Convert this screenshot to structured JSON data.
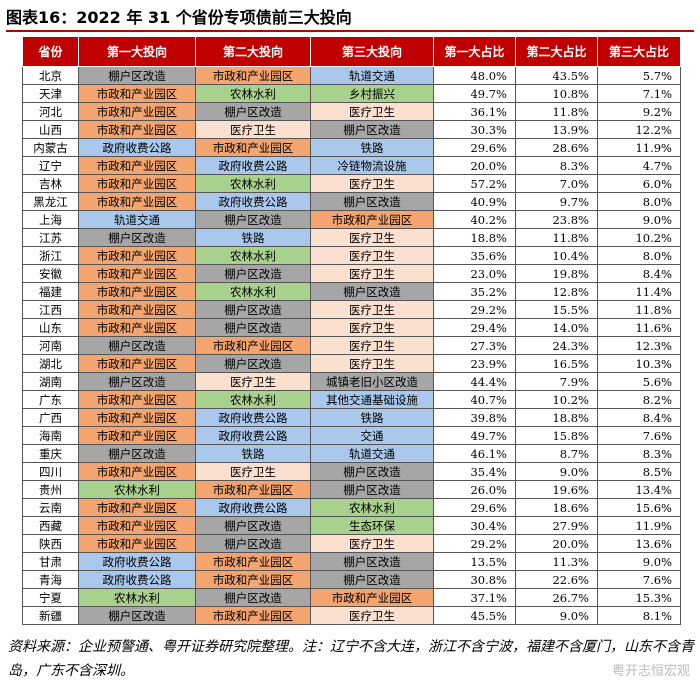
{
  "header": {
    "title": "图表16：2022 年 31 个省份专项债前三大投向"
  },
  "table": {
    "columns": [
      "省份",
      "第一大投向",
      "第二大投向",
      "第三大投向",
      "第一大占比",
      "第二大占比",
      "第三大占比"
    ],
    "rows": [
      [
        "北京",
        "棚户区改造",
        "市政和产业园区",
        "轨道交通",
        "48.0%",
        "43.5%",
        "5.7%"
      ],
      [
        "天津",
        "市政和产业园区",
        "农林水利",
        "乡村振兴",
        "49.7%",
        "10.8%",
        "7.1%"
      ],
      [
        "河北",
        "市政和产业园区",
        "棚户区改造",
        "医疗卫生",
        "36.1%",
        "11.8%",
        "9.2%"
      ],
      [
        "山西",
        "市政和产业园区",
        "医疗卫生",
        "棚户区改造",
        "30.3%",
        "13.9%",
        "12.2%"
      ],
      [
        "内蒙古",
        "政府收费公路",
        "市政和产业园区",
        "铁路",
        "29.6%",
        "28.6%",
        "11.9%"
      ],
      [
        "辽宁",
        "市政和产业园区",
        "政府收费公路",
        "冷链物流设施",
        "20.0%",
        "8.3%",
        "4.7%"
      ],
      [
        "吉林",
        "市政和产业园区",
        "农林水利",
        "医疗卫生",
        "57.2%",
        "7.0%",
        "6.0%"
      ],
      [
        "黑龙江",
        "市政和产业园区",
        "政府收费公路",
        "棚户区改造",
        "40.9%",
        "9.7%",
        "8.0%"
      ],
      [
        "上海",
        "轨道交通",
        "棚户区改造",
        "市政和产业园区",
        "40.2%",
        "23.8%",
        "9.0%"
      ],
      [
        "江苏",
        "棚户区改造",
        "铁路",
        "医疗卫生",
        "18.8%",
        "11.8%",
        "10.2%"
      ],
      [
        "浙江",
        "市政和产业园区",
        "农林水利",
        "医疗卫生",
        "35.6%",
        "10.4%",
        "8.0%"
      ],
      [
        "安徽",
        "市政和产业园区",
        "棚户区改造",
        "医疗卫生",
        "23.0%",
        "19.8%",
        "8.4%"
      ],
      [
        "福建",
        "市政和产业园区",
        "农林水利",
        "棚户区改造",
        "35.2%",
        "12.8%",
        "11.4%"
      ],
      [
        "江西",
        "市政和产业园区",
        "棚户区改造",
        "医疗卫生",
        "29.2%",
        "15.5%",
        "11.8%"
      ],
      [
        "山东",
        "市政和产业园区",
        "棚户区改造",
        "医疗卫生",
        "29.4%",
        "14.0%",
        "11.6%"
      ],
      [
        "河南",
        "棚户区改造",
        "市政和产业园区",
        "医疗卫生",
        "27.3%",
        "24.3%",
        "12.3%"
      ],
      [
        "湖北",
        "市政和产业园区",
        "棚户区改造",
        "医疗卫生",
        "23.9%",
        "16.5%",
        "10.3%"
      ],
      [
        "湖南",
        "棚户区改造",
        "医疗卫生",
        "城镇老旧小区改造",
        "44.4%",
        "7.9%",
        "5.6%"
      ],
      [
        "广东",
        "市政和产业园区",
        "农林水利",
        "其他交通基础设施",
        "40.7%",
        "10.2%",
        "8.2%"
      ],
      [
        "广西",
        "市政和产业园区",
        "政府收费公路",
        "铁路",
        "39.8%",
        "18.8%",
        "8.4%"
      ],
      [
        "海南",
        "市政和产业园区",
        "政府收费公路",
        "交通",
        "49.7%",
        "15.8%",
        "7.6%"
      ],
      [
        "重庆",
        "棚户区改造",
        "铁路",
        "轨道交通",
        "46.1%",
        "8.7%",
        "8.3%"
      ],
      [
        "四川",
        "市政和产业园区",
        "医疗卫生",
        "棚户区改造",
        "35.4%",
        "9.0%",
        "8.5%"
      ],
      [
        "贵州",
        "农林水利",
        "市政和产业园区",
        "棚户区改造",
        "26.0%",
        "19.6%",
        "13.4%"
      ],
      [
        "云南",
        "市政和产业园区",
        "政府收费公路",
        "农林水利",
        "29.6%",
        "18.6%",
        "15.6%"
      ],
      [
        "西藏",
        "市政和产业园区",
        "棚户区改造",
        "生态环保",
        "30.4%",
        "27.9%",
        "11.9%"
      ],
      [
        "陕西",
        "市政和产业园区",
        "棚户区改造",
        "医疗卫生",
        "29.2%",
        "20.0%",
        "13.6%"
      ],
      [
        "甘肃",
        "政府收费公路",
        "市政和产业园区",
        "棚户区改造",
        "13.5%",
        "11.3%",
        "9.0%"
      ],
      [
        "青海",
        "政府收费公路",
        "市政和产业园区",
        "棚户区改造",
        "30.8%",
        "22.6%",
        "7.6%"
      ],
      [
        "宁夏",
        "农林水利",
        "棚户区改造",
        "市政和产业园区",
        "37.1%",
        "26.7%",
        "15.3%"
      ],
      [
        "新疆",
        "棚户区改造",
        "市政和产业园区",
        "医疗卫生",
        "45.5%",
        "9.0%",
        "8.1%"
      ]
    ],
    "cell_colors": [
      [
        "#a6a6a6",
        "#f4a46e",
        "#a9c8ec"
      ],
      [
        "#f4a46e",
        "#a9d18e",
        "#a9d18e"
      ],
      [
        "#f4a46e",
        "#a6a6a6",
        "#fbe0cf"
      ],
      [
        "#f4a46e",
        "#fbe0cf",
        "#a6a6a6"
      ],
      [
        "#a9c8ec",
        "#f4a46e",
        "#a9c8ec"
      ],
      [
        "#f4a46e",
        "#a9c8ec",
        "#a9c8ec"
      ],
      [
        "#f4a46e",
        "#a9d18e",
        "#fbe0cf"
      ],
      [
        "#f4a46e",
        "#a9c8ec",
        "#a6a6a6"
      ],
      [
        "#a9c8ec",
        "#a6a6a6",
        "#f4a46e"
      ],
      [
        "#a6a6a6",
        "#a9c8ec",
        "#fbe0cf"
      ],
      [
        "#f4a46e",
        "#a9d18e",
        "#fbe0cf"
      ],
      [
        "#f4a46e",
        "#a6a6a6",
        "#fbe0cf"
      ],
      [
        "#f4a46e",
        "#a9d18e",
        "#a6a6a6"
      ],
      [
        "#f4a46e",
        "#a6a6a6",
        "#fbe0cf"
      ],
      [
        "#f4a46e",
        "#a6a6a6",
        "#fbe0cf"
      ],
      [
        "#a6a6a6",
        "#f4a46e",
        "#fbe0cf"
      ],
      [
        "#f4a46e",
        "#a6a6a6",
        "#fbe0cf"
      ],
      [
        "#a6a6a6",
        "#fbe0cf",
        "#a6a6a6"
      ],
      [
        "#f4a46e",
        "#a9d18e",
        "#a9c8ec"
      ],
      [
        "#f4a46e",
        "#a9c8ec",
        "#a9c8ec"
      ],
      [
        "#f4a46e",
        "#a9c8ec",
        "#a9c8ec"
      ],
      [
        "#a6a6a6",
        "#a9c8ec",
        "#a9c8ec"
      ],
      [
        "#f4a46e",
        "#fbe0cf",
        "#a6a6a6"
      ],
      [
        "#a9d18e",
        "#f4a46e",
        "#a6a6a6"
      ],
      [
        "#f4a46e",
        "#a9c8ec",
        "#a9d18e"
      ],
      [
        "#f4a46e",
        "#a6a6a6",
        "#a9d18e"
      ],
      [
        "#f4a46e",
        "#a6a6a6",
        "#fbe0cf"
      ],
      [
        "#a9c8ec",
        "#f4a46e",
        "#a6a6a6"
      ],
      [
        "#a9c8ec",
        "#f4a46e",
        "#a6a6a6"
      ],
      [
        "#a9d18e",
        "#a6a6a6",
        "#f4a46e"
      ],
      [
        "#a6a6a6",
        "#f4a46e",
        "#fbe0cf"
      ]
    ]
  },
  "footer": {
    "note": "资料来源：企业预警通、粤开证券研究院整理。注：辽宁不含大连，浙江不含宁波，福建不含厦门，山东不含青岛，广东不含深圳。",
    "watermark": "粤开志恒宏观"
  }
}
